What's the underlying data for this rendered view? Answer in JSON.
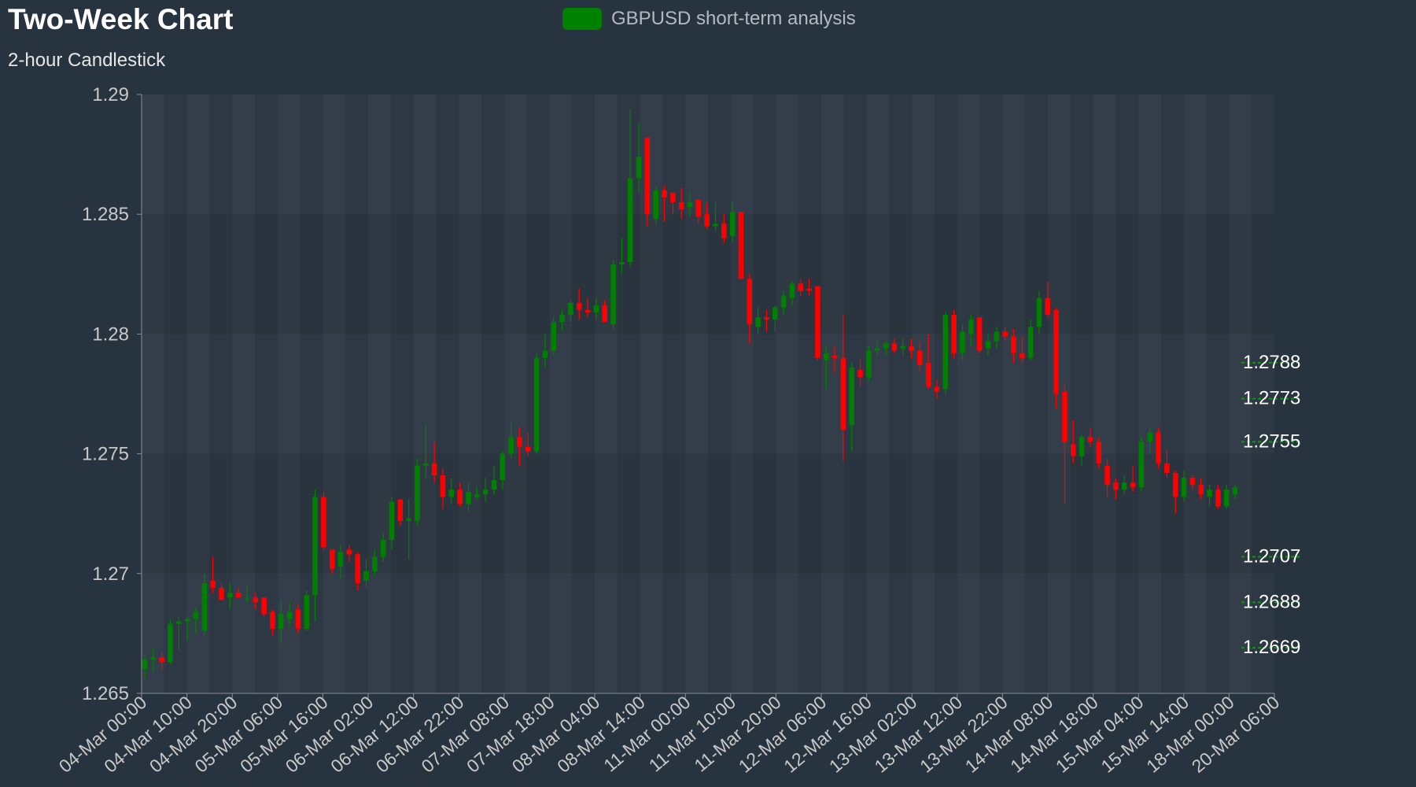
{
  "header": {
    "title": "Two-Week Chart",
    "subtitle": "2-hour Candlestick"
  },
  "legend": {
    "label": "GBPUSD short-term analysis",
    "color": "#008000"
  },
  "colors": {
    "up": "#008000",
    "down": "#ff0000",
    "axis_text": "#c8c8c8",
    "plot_bg_light": "#394350",
    "plot_bg_dark": "#2e3844",
    "level_text": "#ffffff",
    "level_line": "#00a000"
  },
  "chart_data": {
    "type": "candlestick",
    "symbol": "GBPUSD",
    "interval": "2h",
    "ylim": [
      1.265,
      1.29
    ],
    "y_ticks": [
      "1.29",
      "1.285",
      "1.28",
      "1.275",
      "1.27",
      "1.265"
    ],
    "x_tick_labels": [
      "04-Mar 00:00",
      "04-Mar 10:00",
      "04-Mar 20:00",
      "05-Mar 06:00",
      "05-Mar 16:00",
      "06-Mar 02:00",
      "06-Mar 12:00",
      "06-Mar 22:00",
      "07-Mar 08:00",
      "07-Mar 18:00",
      "08-Mar 04:00",
      "08-Mar 14:00",
      "11-Mar 00:00",
      "11-Mar 10:00",
      "11-Mar 20:00",
      "12-Mar 06:00",
      "12-Mar 16:00",
      "13-Mar 02:00",
      "13-Mar 12:00",
      "13-Mar 22:00",
      "14-Mar 08:00",
      "14-Mar 18:00",
      "15-Mar 04:00",
      "15-Mar 14:00",
      "18-Mar 00:00",
      "20-Mar 06:00"
    ],
    "levels": [
      {
        "label": "1.2788",
        "value": 1.2788
      },
      {
        "label": "1.2773",
        "value": 1.2773
      },
      {
        "label": "1.2755",
        "value": 1.2755
      },
      {
        "label": "1.2707",
        "value": 1.2707
      },
      {
        "label": "1.2688",
        "value": 1.2688
      },
      {
        "label": "1.2669",
        "value": 1.2669
      }
    ],
    "candles": [
      [
        1.266,
        1.2666,
        1.2656,
        1.2664
      ],
      [
        1.2664,
        1.2669,
        1.2659,
        1.2665
      ],
      [
        1.2665,
        1.2667,
        1.266,
        1.2663
      ],
      [
        1.2663,
        1.2681,
        1.2662,
        1.2679
      ],
      [
        1.2679,
        1.2682,
        1.2668,
        1.268
      ],
      [
        1.268,
        1.2682,
        1.2672,
        1.2681
      ],
      [
        1.2681,
        1.2686,
        1.2675,
        1.2684
      ],
      [
        1.2676,
        1.27,
        1.2674,
        1.2696
      ],
      [
        1.2697,
        1.2707,
        1.2692,
        1.2694
      ],
      [
        1.2694,
        1.2696,
        1.2689,
        1.2689
      ],
      [
        1.269,
        1.2696,
        1.2685,
        1.2692
      ],
      [
        1.2692,
        1.2694,
        1.269,
        1.269
      ],
      [
        1.269,
        1.2695,
        1.2688,
        1.269
      ],
      [
        1.269,
        1.2692,
        1.2685,
        1.2688
      ],
      [
        1.269,
        1.269,
        1.2682,
        1.2683
      ],
      [
        1.2684,
        1.2685,
        1.2674,
        1.2677
      ],
      [
        1.2677,
        1.2689,
        1.2671,
        1.2683
      ],
      [
        1.2681,
        1.2688,
        1.2678,
        1.2684
      ],
      [
        1.2685,
        1.2687,
        1.2675,
        1.2677
      ],
      [
        1.2677,
        1.2693,
        1.2676,
        1.2691
      ],
      [
        1.2691,
        1.2735,
        1.268,
        1.2732
      ],
      [
        1.2732,
        1.2734,
        1.271,
        1.2711
      ],
      [
        1.271,
        1.271,
        1.27,
        1.2702
      ],
      [
        1.2703,
        1.2712,
        1.2698,
        1.2709
      ],
      [
        1.271,
        1.2712,
        1.2705,
        1.2708
      ],
      [
        1.2708,
        1.2709,
        1.2693,
        1.2696
      ],
      [
        1.2697,
        1.2706,
        1.2694,
        1.2701
      ],
      [
        1.2701,
        1.271,
        1.2699,
        1.2707
      ],
      [
        1.2707,
        1.2717,
        1.2705,
        1.2714
      ],
      [
        1.2714,
        1.2732,
        1.271,
        1.273
      ],
      [
        1.2731,
        1.2731,
        1.272,
        1.2722
      ],
      [
        1.2722,
        1.2731,
        1.2706,
        1.2723
      ],
      [
        1.2722,
        1.2748,
        1.272,
        1.2745
      ],
      [
        1.2745,
        1.2762,
        1.274,
        1.2746
      ],
      [
        1.2746,
        1.2755,
        1.2738,
        1.2741
      ],
      [
        1.2741,
        1.2744,
        1.2727,
        1.2732
      ],
      [
        1.2732,
        1.274,
        1.2729,
        1.2735
      ],
      [
        1.2735,
        1.2738,
        1.2728,
        1.2729
      ],
      [
        1.2729,
        1.2738,
        1.2726,
        1.2734
      ],
      [
        1.2732,
        1.2736,
        1.2731,
        1.2733
      ],
      [
        1.2733,
        1.274,
        1.273,
        1.2735
      ],
      [
        1.2735,
        1.2745,
        1.2733,
        1.2739
      ],
      [
        1.2739,
        1.2751,
        1.2735,
        1.275
      ],
      [
        1.275,
        1.2763,
        1.2748,
        1.2757
      ],
      [
        1.2757,
        1.2761,
        1.2745,
        1.2753
      ],
      [
        1.2753,
        1.2759,
        1.2749,
        1.2751
      ],
      [
        1.2751,
        1.2792,
        1.275,
        1.279
      ],
      [
        1.279,
        1.28,
        1.2786,
        1.2793
      ],
      [
        1.2793,
        1.2807,
        1.2791,
        1.2805
      ],
      [
        1.2805,
        1.281,
        1.2801,
        1.2808
      ],
      [
        1.2808,
        1.2814,
        1.2805,
        1.2813
      ],
      [
        1.2813,
        1.2819,
        1.2806,
        1.281
      ],
      [
        1.281,
        1.2815,
        1.2807,
        1.2809
      ],
      [
        1.2809,
        1.2815,
        1.2806,
        1.2812
      ],
      [
        1.2812,
        1.2814,
        1.2805,
        1.2805
      ],
      [
        1.2804,
        1.2831,
        1.2802,
        1.2829
      ],
      [
        1.2829,
        1.284,
        1.2825,
        1.283
      ],
      [
        1.283,
        1.2894,
        1.2828,
        1.2865
      ],
      [
        1.2865,
        1.2888,
        1.2859,
        1.2874
      ],
      [
        1.2882,
        1.2882,
        1.2845,
        1.285
      ],
      [
        1.2848,
        1.2862,
        1.2846,
        1.286
      ],
      [
        1.286,
        1.2862,
        1.2847,
        1.2857
      ],
      [
        1.2859,
        1.2859,
        1.285,
        1.2855
      ],
      [
        1.2855,
        1.2861,
        1.2848,
        1.2852
      ],
      [
        1.2853,
        1.2859,
        1.2849,
        1.2855
      ],
      [
        1.2856,
        1.2856,
        1.2846,
        1.2849
      ],
      [
        1.285,
        1.2855,
        1.2844,
        1.2845
      ],
      [
        1.2845,
        1.2855,
        1.2843,
        1.2846
      ],
      [
        1.2846,
        1.285,
        1.2838,
        1.284
      ],
      [
        1.2841,
        1.2855,
        1.2838,
        1.2851
      ],
      [
        1.2851,
        1.2851,
        1.2825,
        1.2823
      ],
      [
        1.2823,
        1.2825,
        1.2796,
        1.2804
      ],
      [
        1.2803,
        1.2811,
        1.28,
        1.2807
      ],
      [
        1.2807,
        1.281,
        1.2801,
        1.2806
      ],
      [
        1.2806,
        1.2812,
        1.2801,
        1.2811
      ],
      [
        1.2811,
        1.2818,
        1.2808,
        1.2816
      ],
      [
        1.2815,
        1.2822,
        1.2812,
        1.2821
      ],
      [
        1.2821,
        1.2823,
        1.2816,
        1.2818
      ],
      [
        1.2819,
        1.2823,
        1.2816,
        1.2818
      ],
      [
        1.282,
        1.282,
        1.2789,
        1.279
      ],
      [
        1.2789,
        1.2795,
        1.2777,
        1.2792
      ],
      [
        1.2791,
        1.2795,
        1.2784,
        1.279
      ],
      [
        1.279,
        1.2808,
        1.2747,
        1.276
      ],
      [
        1.2762,
        1.2788,
        1.2751,
        1.2786
      ],
      [
        1.2785,
        1.279,
        1.2778,
        1.2782
      ],
      [
        1.2782,
        1.2795,
        1.278,
        1.2793
      ],
      [
        1.2793,
        1.2797,
        1.2791,
        1.2794
      ],
      [
        1.2794,
        1.2797,
        1.2791,
        1.2796
      ],
      [
        1.2796,
        1.2798,
        1.2792,
        1.2793
      ],
      [
        1.2794,
        1.2798,
        1.2791,
        1.2795
      ],
      [
        1.2795,
        1.2798,
        1.279,
        1.2793
      ],
      [
        1.2793,
        1.2797,
        1.2784,
        1.2787
      ],
      [
        1.2788,
        1.28,
        1.2777,
        1.2778
      ],
      [
        1.2778,
        1.2781,
        1.2773,
        1.2776
      ],
      [
        1.2777,
        1.2809,
        1.2775,
        1.2808
      ],
      [
        1.2808,
        1.281,
        1.279,
        1.2792
      ],
      [
        1.2792,
        1.2804,
        1.2789,
        1.2801
      ],
      [
        1.28,
        1.2808,
        1.2795,
        1.2806
      ],
      [
        1.2807,
        1.2807,
        1.2792,
        1.2793
      ],
      [
        1.2794,
        1.28,
        1.2791,
        1.2797
      ],
      [
        1.2797,
        1.2803,
        1.2794,
        1.2801
      ],
      [
        1.2801,
        1.2803,
        1.2797,
        1.2799
      ],
      [
        1.2799,
        1.2802,
        1.2788,
        1.2792
      ],
      [
        1.2792,
        1.2799,
        1.2788,
        1.279
      ],
      [
        1.279,
        1.2806,
        1.2789,
        1.2803
      ],
      [
        1.2803,
        1.2818,
        1.28,
        1.2815
      ],
      [
        1.2815,
        1.2822,
        1.2807,
        1.2808
      ],
      [
        1.281,
        1.2811,
        1.2769,
        1.2775
      ],
      [
        1.2776,
        1.2779,
        1.2729,
        1.2755
      ],
      [
        1.2754,
        1.2764,
        1.2746,
        1.2749
      ],
      [
        1.2749,
        1.2758,
        1.2745,
        1.2757
      ],
      [
        1.2757,
        1.2761,
        1.2753,
        1.2755
      ],
      [
        1.2755,
        1.2757,
        1.2744,
        1.2746
      ],
      [
        1.2745,
        1.2748,
        1.2732,
        1.2737
      ],
      [
        1.2738,
        1.274,
        1.2731,
        1.2735
      ],
      [
        1.2735,
        1.2741,
        1.2733,
        1.2738
      ],
      [
        1.2738,
        1.2745,
        1.2734,
        1.2736
      ],
      [
        1.2736,
        1.2757,
        1.2734,
        1.2755
      ],
      [
        1.2755,
        1.2761,
        1.275,
        1.2759
      ],
      [
        1.2759,
        1.2761,
        1.2744,
        1.2746
      ],
      [
        1.2746,
        1.2752,
        1.274,
        1.2742
      ],
      [
        1.2742,
        1.2743,
        1.2725,
        1.2732
      ],
      [
        1.2732,
        1.2743,
        1.273,
        1.274
      ],
      [
        1.274,
        1.2741,
        1.2735,
        1.2737
      ],
      [
        1.2737,
        1.274,
        1.2731,
        1.2733
      ],
      [
        1.2732,
        1.2737,
        1.2728,
        1.2735
      ],
      [
        1.2735,
        1.2737,
        1.2727,
        1.2728
      ],
      [
        1.2728,
        1.2737,
        1.2727,
        1.2735
      ],
      [
        1.2733,
        1.2737,
        1.2731,
        1.2736
      ]
    ]
  }
}
